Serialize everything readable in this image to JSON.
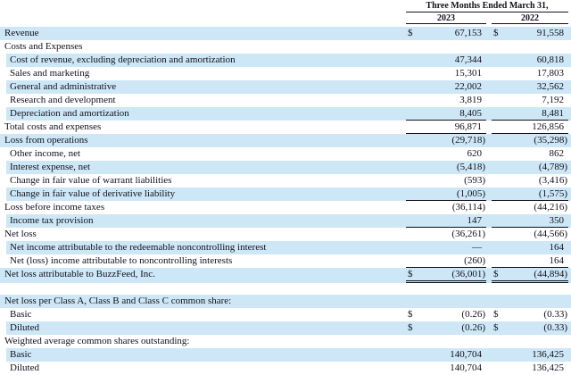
{
  "header": {
    "period_label": "Three Months Ended March 31,",
    "col_2023": "2023",
    "col_2022": "2022"
  },
  "colors": {
    "row_highlight": "#cde7f6",
    "text": "#10101c",
    "rule": "#10101c"
  },
  "rows": [
    {
      "label": "Revenue",
      "indent": false,
      "shade": true,
      "cur1": "$",
      "v1": "67,153",
      "cur2": "$",
      "v2": "91,558"
    },
    {
      "label": "Costs and Expenses",
      "indent": false,
      "shade": false
    },
    {
      "label": "Cost of revenue, excluding depreciation and amortization",
      "indent": true,
      "shade": true,
      "v1": "47,344",
      "v2": "60,818"
    },
    {
      "label": "Sales and marketing",
      "indent": true,
      "shade": false,
      "v1": "15,301",
      "v2": "17,803"
    },
    {
      "label": "General and administrative",
      "indent": true,
      "shade": true,
      "v1": "22,002",
      "v2": "32,562"
    },
    {
      "label": "Research and development",
      "indent": true,
      "shade": false,
      "v1": "3,819",
      "v2": "7,192"
    },
    {
      "label": "Depreciation and amortization",
      "indent": true,
      "shade": true,
      "v1": "8,405",
      "v2": "8,481",
      "rule_below": true
    },
    {
      "label": "Total costs and expenses",
      "indent": false,
      "shade": false,
      "v1": "96,871",
      "v2": "126,856",
      "rule_below": true
    },
    {
      "label": "Loss from operations",
      "indent": false,
      "shade": true,
      "v1": "(29,718)",
      "v2": "(35,298)"
    },
    {
      "label": "Other income, net",
      "indent": true,
      "shade": false,
      "v1": "620",
      "v2": "862"
    },
    {
      "label": "Interest expense, net",
      "indent": true,
      "shade": true,
      "v1": "(5,418)",
      "v2": "(4,789)"
    },
    {
      "label": "Change in fair value of warrant liabilities",
      "indent": true,
      "shade": false,
      "v1": "(593)",
      "v2": "(3,416)"
    },
    {
      "label": "Change in fair value of derivative liability",
      "indent": true,
      "shade": true,
      "v1": "(1,005)",
      "v2": "(1,575)",
      "rule_below": true
    },
    {
      "label": "Loss before income taxes",
      "indent": false,
      "shade": false,
      "v1": "(36,114)",
      "v2": "(44,216)"
    },
    {
      "label": "Income tax provision",
      "indent": true,
      "shade": true,
      "v1": "147",
      "v2": "350",
      "rule_below": true
    },
    {
      "label": "Net loss",
      "indent": false,
      "shade": false,
      "v1": "(36,261)",
      "v2": "(44,566)"
    },
    {
      "label": "Net income attributable to the redeemable noncontrolling interest",
      "indent": true,
      "shade": true,
      "v1": "—",
      "v2": "164"
    },
    {
      "label": "Net (loss) income attributable to noncontrolling interests",
      "indent": true,
      "shade": false,
      "v1": "(260)",
      "v2": "164",
      "rule_below": true
    },
    {
      "label": "Net loss attributable to BuzzFeed, Inc.",
      "indent": false,
      "shade": true,
      "cur1": "$",
      "v1": "(36,001)",
      "cur2": "$",
      "v2": "(44,894)",
      "double_below": true
    },
    {
      "spacer": true
    },
    {
      "label": "Net loss per Class A, Class B and Class C common share:",
      "indent": false,
      "shade": true
    },
    {
      "label": "Basic",
      "indent": true,
      "shade": false,
      "cur1": "$",
      "v1": "(0.26)",
      "cur2": "$",
      "v2": "(0.33)"
    },
    {
      "label": "Diluted",
      "indent": true,
      "shade": true,
      "cur1": "$",
      "v1": "(0.26)",
      "cur2": "$",
      "v2": "(0.33)"
    },
    {
      "label": "Weighted average common shares outstanding:",
      "indent": false,
      "shade": false
    },
    {
      "label": "Basic",
      "indent": true,
      "shade": true,
      "v1": "140,704",
      "v2": "136,425"
    },
    {
      "label": "Diluted",
      "indent": true,
      "shade": false,
      "v1": "140,704",
      "v2": "136,425"
    }
  ]
}
